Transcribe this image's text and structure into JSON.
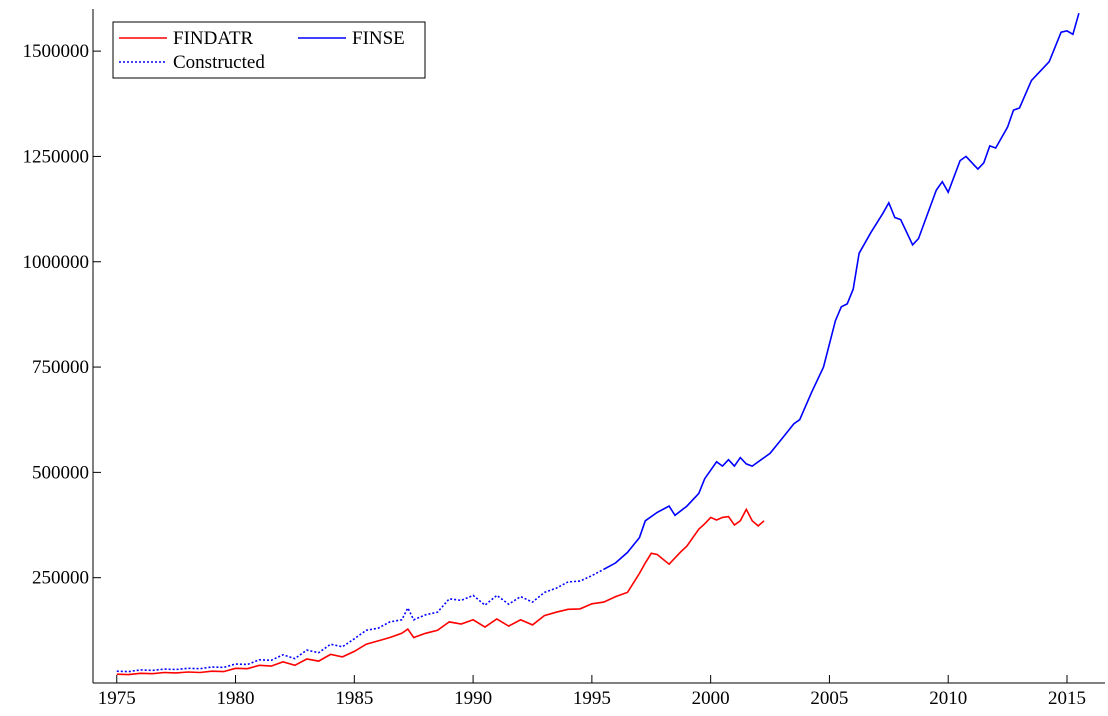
{
  "chart_data": {
    "type": "line",
    "xlim": [
      1974,
      2016.6
    ],
    "xticks": [
      1975,
      1980,
      1985,
      1990,
      1995,
      2000,
      2005,
      2010,
      2015
    ],
    "ylim": [
      0,
      1600000
    ],
    "yticks": [
      250000,
      500000,
      750000,
      1000000,
      1250000,
      1500000
    ],
    "legend": "upper left",
    "series": [
      {
        "name": "FINDATR",
        "color": "#ff0000",
        "style": "solid",
        "x": [
          1975,
          1975.5,
          1976,
          1976.5,
          1977,
          1977.5,
          1978,
          1978.5,
          1979,
          1979.5,
          1980,
          1980.5,
          1981,
          1981.5,
          1982,
          1982.5,
          1983,
          1983.5,
          1984,
          1984.5,
          1985,
          1985.5,
          1986,
          1986.5,
          1987,
          1987.25,
          1987.5,
          1988,
          1988.5,
          1989,
          1989.5,
          1990,
          1990.5,
          1991,
          1991.5,
          1992,
          1992.5,
          1993,
          1993.5,
          1994,
          1994.5,
          1995,
          1995.5,
          1996,
          1996.5,
          1997,
          1997.25,
          1997.5,
          1997.75,
          1998.25,
          1998.75,
          1999,
          1999.5,
          1999.75,
          2000,
          2000.25,
          2000.5,
          2000.75,
          2001,
          2001.25,
          2001.5,
          2001.75,
          2002,
          2002.25
        ],
        "values": [
          21000,
          20000,
          23000,
          22000,
          25000,
          24000,
          26000,
          25000,
          28000,
          27000,
          35000,
          34000,
          42000,
          40000,
          50000,
          42000,
          57000,
          52000,
          68000,
          62000,
          75000,
          92000,
          100000,
          108000,
          118000,
          128000,
          108000,
          118000,
          125000,
          145000,
          140000,
          150000,
          133000,
          152000,
          135000,
          150000,
          138000,
          160000,
          168000,
          175000,
          176000,
          188000,
          192000,
          205000,
          215000,
          260000,
          285000,
          308000,
          305000,
          282000,
          312000,
          325000,
          365000,
          378000,
          393000,
          387000,
          393000,
          395000,
          375000,
          385000,
          412000,
          385000,
          373000,
          385000
        ]
      },
      {
        "name": "FINSE",
        "color": "#0000ff",
        "style": "solid",
        "x": [
          1995.5,
          1996,
          1996.5,
          1997,
          1997.25,
          1997.75,
          1998.25,
          1998.5,
          1999,
          1999.5,
          1999.75,
          2000.25,
          2000.5,
          2000.75,
          2001,
          2001.25,
          2001.5,
          2001.75,
          2002.25,
          2002.5,
          2003,
          2003.5,
          2003.75,
          2004.25,
          2004.75,
          2005.25,
          2005.5,
          2005.75,
          2006,
          2006.25,
          2006.75,
          2007.25,
          2007.5,
          2007.75,
          2008,
          2008.5,
          2008.75,
          2009.5,
          2009.75,
          2010,
          2010.5,
          2010.75,
          2011.25,
          2011.5,
          2011.75,
          2012,
          2012.5,
          2012.75,
          2013,
          2013.5,
          2014.25,
          2014.75,
          2015,
          2015.25,
          2015.5
        ],
        "values": [
          270000,
          285000,
          310000,
          345000,
          385000,
          405000,
          420000,
          398000,
          420000,
          450000,
          485000,
          525000,
          515000,
          530000,
          515000,
          535000,
          520000,
          515000,
          535000,
          545000,
          580000,
          615000,
          625000,
          690000,
          750000,
          860000,
          893000,
          900000,
          935000,
          1020000,
          1070000,
          1115000,
          1140000,
          1105000,
          1100000,
          1040000,
          1055000,
          1170000,
          1190000,
          1165000,
          1240000,
          1250000,
          1220000,
          1235000,
          1275000,
          1270000,
          1320000,
          1360000,
          1365000,
          1430000,
          1475000,
          1545000,
          1548000,
          1540000,
          1590000
        ]
      },
      {
        "name": "Constructed",
        "color": "#0000ff",
        "style": "dotted",
        "x": [
          1975,
          1975.5,
          1976,
          1976.5,
          1977,
          1977.5,
          1978,
          1978.5,
          1979,
          1979.5,
          1980,
          1980.5,
          1981,
          1981.5,
          1982,
          1982.5,
          1983,
          1983.5,
          1984,
          1984.5,
          1985,
          1985.5,
          1986,
          1986.5,
          1987,
          1987.25,
          1987.5,
          1988,
          1988.5,
          1989,
          1989.5,
          1990,
          1990.5,
          1991,
          1991.5,
          1992,
          1992.5,
          1993,
          1993.5,
          1994,
          1994.5,
          1995,
          1995.5
        ],
        "values": [
          28000,
          27000,
          31000,
          30000,
          33000,
          32000,
          35000,
          34000,
          38000,
          37000,
          45000,
          44000,
          55000,
          54000,
          67000,
          58000,
          78000,
          72000,
          92000,
          86000,
          105000,
          125000,
          130000,
          145000,
          150000,
          178000,
          150000,
          162000,
          168000,
          200000,
          196000,
          208000,
          185000,
          208000,
          187000,
          205000,
          192000,
          215000,
          225000,
          240000,
          242000,
          255000,
          270000
        ]
      }
    ]
  }
}
